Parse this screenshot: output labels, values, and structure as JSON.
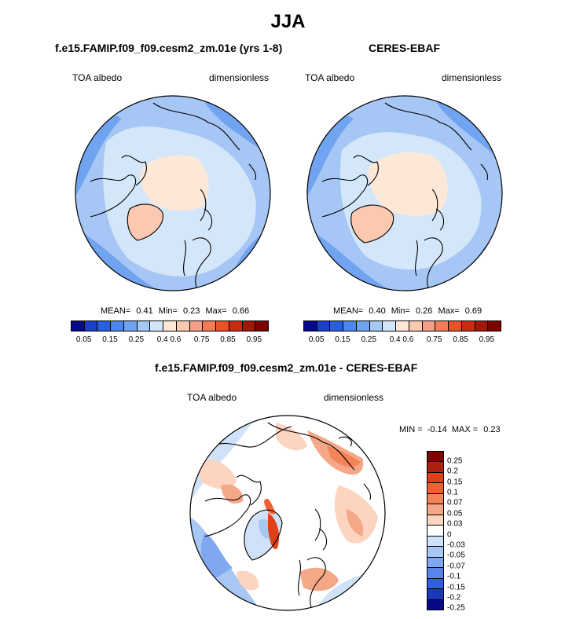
{
  "title": "JJA",
  "panels": {
    "model": {
      "title": "f.e15.FAMIP.f09_f09.cesm2_zm.01e (yrs 1-8)",
      "left_label": "TOA albedo",
      "right_label": "dimensionless",
      "mean": "0.41",
      "min": "0.23",
      "max": "0.66"
    },
    "obs": {
      "title": "CERES-EBAF",
      "left_label": "TOA albedo",
      "right_label": "dimensionless",
      "mean": "0.40",
      "min": "0.26",
      "max": "0.69"
    },
    "diff": {
      "title": "f.e15.FAMIP.f09_f09.cesm2_zm.01e - CERES-EBAF",
      "left_label": "TOA albedo",
      "right_label": "dimensionless",
      "min": "-0.14",
      "max": "0.23"
    }
  },
  "stats_labels": {
    "mean": "MEAN=",
    "min": "Min=",
    "max": "Max=",
    "dmin": "MIN =",
    "dmax": "MAX ="
  },
  "colorbar": {
    "colors": [
      "#08088a",
      "#1840c8",
      "#2860e0",
      "#4c86f0",
      "#70a4f0",
      "#a6c6f6",
      "#d4e6fa",
      "#fde8d8",
      "#fbc8b0",
      "#f4a088",
      "#f47c58",
      "#e85428",
      "#c82c10",
      "#a01808",
      "#800000"
    ],
    "ticks": [
      "0.05",
      "0.15",
      "0.25",
      "0.4",
      "0.6",
      "0.75",
      "0.85",
      "0.95"
    ]
  },
  "diff_colorbar": {
    "colors": [
      "#800000",
      "#b02010",
      "#e04018",
      "#f06030",
      "#f48458",
      "#f4a888",
      "#fcd4c0",
      "#ffffff",
      "#d0e2fa",
      "#a8c8f4",
      "#80a8f0",
      "#5884ec",
      "#3060e0",
      "#1838b8",
      "#080888"
    ],
    "ticks": [
      "0.25",
      "0.2",
      "0.15",
      "0.1",
      "0.07",
      "0.05",
      "0.03",
      "0",
      "-0.03",
      "-0.05",
      "-0.07",
      "-0.1",
      "-0.15",
      "-0.2",
      "-0.25"
    ]
  }
}
